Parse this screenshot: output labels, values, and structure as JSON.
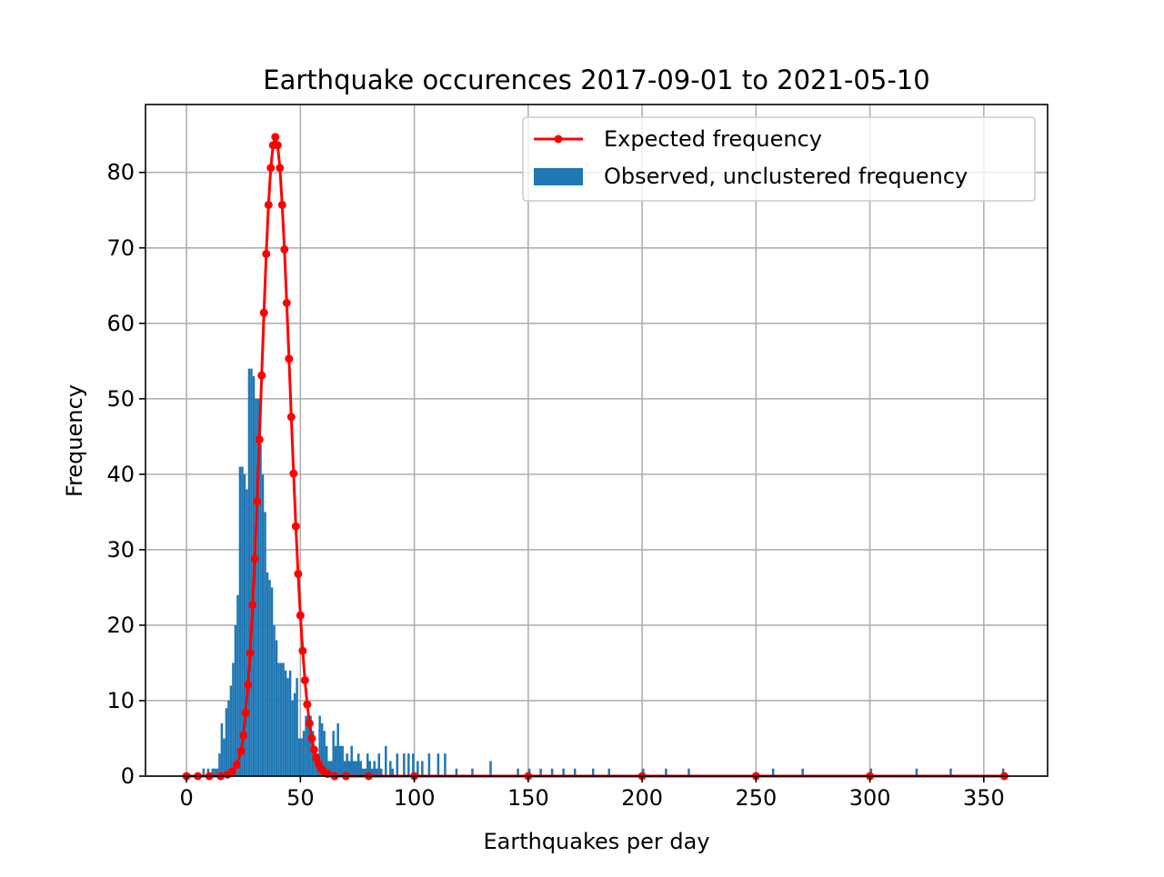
{
  "chart_data": {
    "type": "bar",
    "title": "Earthquake occurences 2017-09-01 to 2021-05-10",
    "xlabel": "Earthquakes per day",
    "ylabel": "Frequency",
    "xlim": [
      -18,
      378
    ],
    "ylim": [
      0,
      89
    ],
    "xticks": [
      0,
      50,
      100,
      150,
      200,
      250,
      300,
      350
    ],
    "yticks": [
      0,
      10,
      20,
      30,
      40,
      50,
      60,
      70,
      80
    ],
    "grid": true,
    "legend_position": "top-right",
    "colors": {
      "observed": "#1f77b4",
      "expected": "#ff0000",
      "grid": "#b0b0b0"
    },
    "series": [
      {
        "name": "Expected frequency",
        "kind": "line-markers",
        "x": [
          0,
          5,
          10,
          15,
          18,
          20,
          22,
          24,
          25,
          26,
          27,
          28,
          29,
          30,
          31,
          32,
          33,
          34,
          35,
          36,
          37,
          38,
          39,
          40,
          41,
          42,
          43,
          44,
          45,
          46,
          47,
          48,
          49,
          50,
          51,
          52,
          53,
          54,
          55,
          56,
          57,
          58,
          59,
          60,
          62,
          65,
          70,
          80,
          100,
          150,
          200,
          250,
          300,
          359
        ],
        "y": [
          0,
          0,
          0,
          0,
          0.2,
          0.6,
          1.5,
          3.3,
          5.4,
          8.4,
          12.1,
          16.3,
          22.7,
          28.8,
          36.4,
          44.6,
          53.1,
          61.4,
          69.2,
          75.7,
          80.6,
          83.6,
          84.7,
          83.6,
          80.6,
          75.7,
          69.8,
          62.7,
          55.3,
          47.6,
          40.1,
          33.1,
          26.8,
          21.3,
          16.6,
          12.7,
          9.5,
          7.0,
          5.0,
          3.5,
          2.4,
          1.6,
          1.0,
          0.7,
          0.3,
          0,
          0,
          0,
          0,
          0,
          0,
          0,
          0,
          0
        ]
      },
      {
        "name": "Observed, unclustered frequency",
        "kind": "histogram",
        "bin_width": 1,
        "x": [
          7,
          9,
          11,
          12,
          13,
          14,
          15,
          16,
          17,
          18,
          19,
          20,
          21,
          22,
          23,
          24,
          25,
          26,
          27,
          28,
          29,
          30,
          31,
          32,
          33,
          34,
          35,
          36,
          37,
          38,
          39,
          40,
          41,
          42,
          43,
          44,
          45,
          46,
          47,
          48,
          49,
          50,
          51,
          52,
          53,
          54,
          55,
          56,
          57,
          58,
          59,
          60,
          61,
          62,
          63,
          64,
          65,
          66,
          67,
          68,
          69,
          70,
          71,
          72,
          73,
          74,
          75,
          76,
          77,
          78,
          79,
          80,
          81,
          82,
          83,
          84,
          85,
          87,
          89,
          90,
          92,
          95,
          97,
          99,
          101,
          103,
          106,
          110,
          113,
          118,
          125,
          133,
          145,
          150,
          155,
          160,
          165,
          170,
          178,
          185,
          200,
          210,
          220,
          257,
          270,
          300,
          320,
          335,
          358
        ],
        "y": [
          1,
          1,
          1,
          1,
          1,
          3,
          7,
          5,
          9,
          10,
          12,
          15,
          20,
          24,
          41,
          41,
          40,
          38,
          54,
          54,
          53,
          50,
          50,
          44,
          40,
          35,
          27,
          26,
          25,
          20,
          18,
          15,
          15,
          15,
          14,
          13,
          14,
          10,
          11,
          13,
          5,
          5,
          6,
          8,
          8,
          8,
          6,
          4,
          3,
          8,
          7,
          6,
          4,
          2,
          2,
          6,
          4,
          7,
          4,
          4,
          2,
          3,
          2,
          4,
          2,
          2,
          3,
          2,
          1,
          1,
          3,
          2,
          1,
          2,
          1,
          3,
          1,
          4,
          2,
          1,
          3,
          3,
          3,
          3,
          2,
          2,
          3,
          3,
          3,
          1,
          1,
          2,
          1,
          1,
          1,
          1,
          1,
          1,
          1,
          1,
          1,
          1,
          1,
          1,
          1,
          1,
          1,
          1,
          1
        ]
      }
    ]
  }
}
